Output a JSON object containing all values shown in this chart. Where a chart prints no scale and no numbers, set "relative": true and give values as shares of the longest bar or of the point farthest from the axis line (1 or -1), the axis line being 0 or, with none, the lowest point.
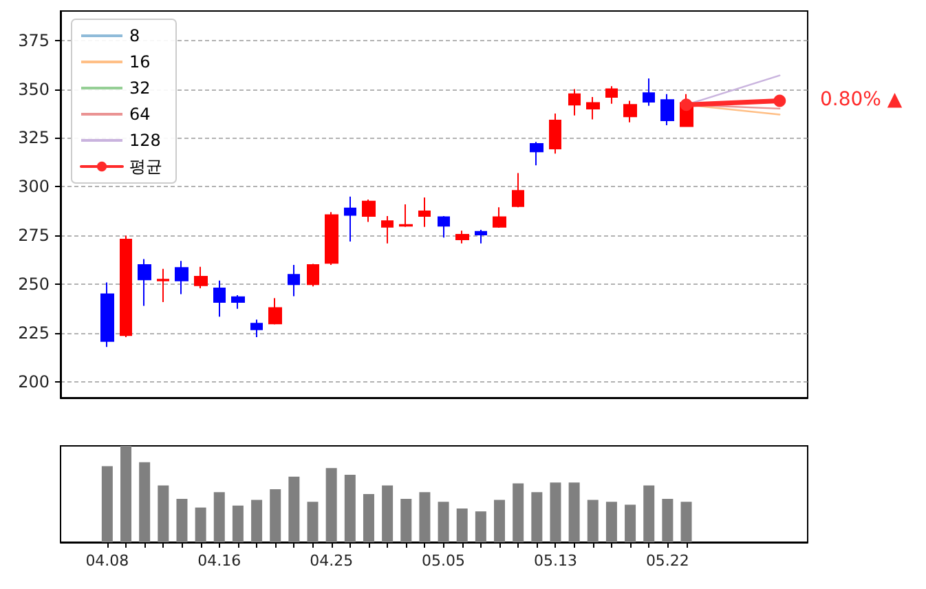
{
  "chart_data": [
    {
      "type": "candlestick",
      "categories": [
        null,
        null,
        "04.08",
        null,
        null,
        null,
        null,
        null,
        "04.16",
        null,
        null,
        null,
        null,
        null,
        "04.25",
        null,
        null,
        null,
        null,
        null,
        "05.05",
        null,
        null,
        null,
        null,
        null,
        "05.13",
        null,
        null,
        null,
        null,
        null,
        "05.22",
        null,
        null,
        null,
        null,
        null,
        null,
        null
      ],
      "ohlc": [
        null,
        null,
        [
          245,
          251,
          218,
          221
        ],
        [
          224,
          275,
          223,
          273
        ],
        [
          260,
          263,
          239,
          252.5
        ],
        [
          252,
          258,
          241,
          252.5
        ],
        [
          258.5,
          262,
          245,
          252
        ],
        [
          249.5,
          259,
          248,
          254
        ],
        [
          248,
          252,
          233.5,
          241
        ],
        [
          243.5,
          244.5,
          237.5,
          241
        ],
        [
          230,
          232,
          223,
          227
        ],
        [
          230,
          243,
          229.5,
          238
        ],
        [
          255,
          260,
          244,
          250
        ],
        [
          250,
          260.5,
          249,
          260
        ],
        [
          261,
          287,
          260,
          285.5
        ],
        [
          289,
          295,
          272,
          285.5
        ],
        [
          285,
          293.5,
          282,
          292.5
        ],
        [
          279.5,
          285,
          271,
          282.5
        ],
        [
          280,
          291,
          279.5,
          280.5
        ],
        [
          285,
          294.5,
          279.5,
          287.5
        ],
        [
          284.5,
          285,
          274,
          280
        ],
        [
          273,
          277.5,
          271,
          275.5
        ],
        [
          277,
          278,
          271,
          275.5
        ],
        [
          279.5,
          289.5,
          279,
          284.5
        ],
        [
          290,
          307,
          289.5,
          298
        ],
        [
          322,
          323,
          311,
          318
        ],
        [
          319.5,
          337.5,
          317,
          334
        ],
        [
          342,
          350,
          336.5,
          347.5
        ],
        [
          340,
          346,
          334.5,
          343
        ],
        [
          346,
          351.5,
          342.5,
          350
        ],
        [
          336,
          344,
          333,
          342
        ],
        [
          348,
          355.5,
          341.5,
          343.5
        ],
        [
          344.5,
          347.5,
          331.5,
          334
        ],
        [
          331,
          347.5,
          331,
          343
        ],
        null,
        null,
        null,
        null,
        null,
        null
      ],
      "colors": [
        null,
        null,
        "#0000ff",
        "#ff0000",
        "#0000ff",
        "#ff0000",
        "#0000ff",
        "#ff0000",
        "#0000ff",
        "#0000ff",
        "#0000ff",
        "#ff0000",
        "#0000ff",
        "#ff0000",
        "#ff0000",
        "#0000ff",
        "#ff0000",
        "#ff0000",
        "#ff0000",
        "#ff0000",
        "#0000ff",
        "#ff0000",
        "#0000ff",
        "#ff0000",
        "#ff0000",
        "#0000ff",
        "#ff0000",
        "#ff0000",
        "#ff0000",
        "#ff0000",
        "#ff0000",
        "#0000ff",
        "#0000ff",
        "#ff0000",
        null,
        null,
        null,
        null,
        null,
        null
      ],
      "series": [
        {
          "type": "line",
          "name": "8",
          "color": "#8fbbd9",
          "marker": "none",
          "values": [
            null,
            null,
            null,
            null,
            null,
            null,
            null,
            null,
            null,
            null,
            null,
            null,
            null,
            null,
            null,
            null,
            null,
            null,
            null,
            null,
            null,
            null,
            null,
            null,
            null,
            null,
            null,
            null,
            null,
            null,
            null,
            null,
            null,
            null,
            null,
            null,
            null,
            null,
            null,
            null
          ]
        },
        {
          "type": "line",
          "name": "16",
          "color": "#ffbf86",
          "marker": "none",
          "values": [
            null,
            null,
            null,
            null,
            null,
            null,
            null,
            null,
            null,
            null,
            null,
            null,
            null,
            null,
            null,
            null,
            null,
            null,
            null,
            null,
            null,
            null,
            null,
            null,
            null,
            null,
            null,
            null,
            null,
            null,
            null,
            null,
            null,
            342,
            null,
            null,
            null,
            null,
            337,
            null
          ]
        },
        {
          "type": "line",
          "name": "32",
          "color": "#95cf95",
          "marker": "none",
          "values": [
            null,
            null,
            null,
            null,
            null,
            null,
            null,
            null,
            null,
            null,
            null,
            null,
            null,
            null,
            null,
            null,
            null,
            null,
            null,
            null,
            null,
            null,
            null,
            null,
            null,
            null,
            null,
            null,
            null,
            null,
            null,
            null,
            null,
            null,
            null,
            null,
            null,
            null,
            null,
            null
          ]
        },
        {
          "type": "line",
          "name": "64",
          "color": "#ea9393",
          "marker": "none",
          "values": [
            null,
            null,
            null,
            null,
            null,
            null,
            null,
            null,
            null,
            null,
            null,
            null,
            null,
            null,
            null,
            null,
            null,
            null,
            null,
            null,
            null,
            null,
            null,
            null,
            null,
            null,
            null,
            null,
            null,
            null,
            null,
            null,
            null,
            342,
            null,
            null,
            null,
            null,
            340,
            null
          ]
        },
        {
          "type": "line",
          "name": "128",
          "color": "#c9b3de",
          "marker": "none",
          "values": [
            null,
            null,
            null,
            null,
            null,
            null,
            null,
            null,
            null,
            null,
            null,
            null,
            null,
            null,
            null,
            null,
            null,
            null,
            null,
            null,
            null,
            null,
            null,
            null,
            null,
            null,
            null,
            null,
            null,
            null,
            null,
            null,
            null,
            342,
            null,
            null,
            null,
            null,
            357,
            null
          ]
        },
        {
          "type": "line",
          "name": "평균",
          "color": "#ff2a2a",
          "marker": "circle",
          "values": [
            null,
            null,
            null,
            null,
            null,
            null,
            null,
            null,
            null,
            null,
            null,
            null,
            null,
            null,
            null,
            null,
            null,
            null,
            null,
            null,
            null,
            null,
            null,
            null,
            null,
            null,
            null,
            null,
            null,
            null,
            null,
            null,
            null,
            342,
            null,
            null,
            null,
            null,
            344,
            null
          ]
        }
      ],
      "ylim": [
        192,
        390
      ],
      "yticks": [
        200,
        225,
        250,
        275,
        300,
        325,
        350,
        375
      ],
      "grid": "y",
      "legend": "top left",
      "tick_labels": "y",
      "annotations": [
        "0.80% ▲"
      ]
    },
    {
      "type": "bar",
      "relative": true,
      "color": "#808080",
      "tick_labels": "x",
      "categories": [
        null,
        null,
        "04.08",
        null,
        null,
        null,
        null,
        null,
        "04.16",
        null,
        null,
        null,
        null,
        null,
        "04.25",
        null,
        null,
        null,
        null,
        null,
        "05.05",
        null,
        null,
        null,
        null,
        null,
        "05.13",
        null,
        null,
        null,
        null,
        null,
        "05.22",
        null,
        null,
        null,
        null,
        null,
        null,
        null
      ],
      "values": [
        null,
        null,
        0.79,
        1,
        0.83,
        0.59,
        0.45,
        0.36,
        0.52,
        0.38,
        0.44,
        0.55,
        0.68,
        0.42,
        0.77,
        0.7,
        0.5,
        0.59,
        0.45,
        0.52,
        0.42,
        0.35,
        0.32,
        0.44,
        0.61,
        0.52,
        0.62,
        0.62,
        0.44,
        0.42,
        0.39,
        0.59,
        0.45,
        0.42,
        null,
        null,
        null,
        null,
        null,
        null
      ]
    }
  ]
}
